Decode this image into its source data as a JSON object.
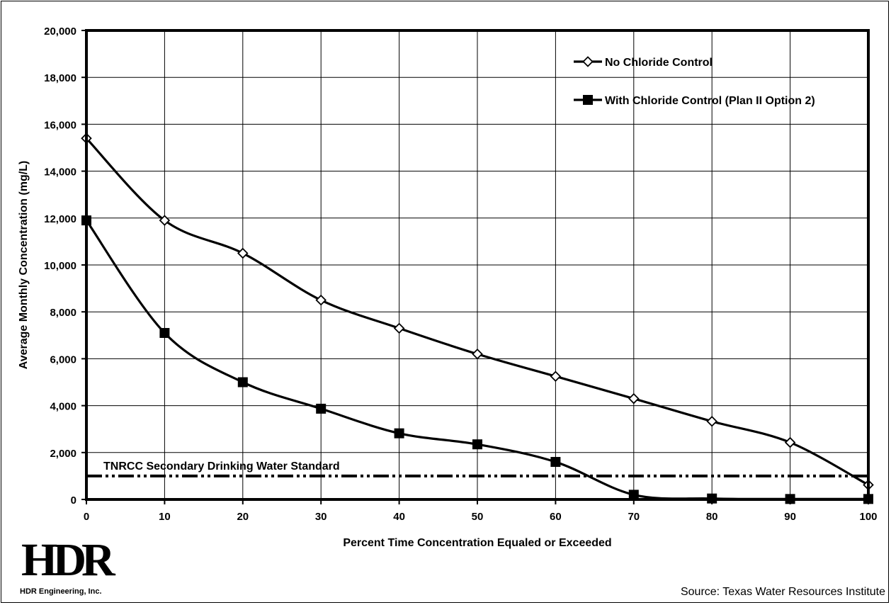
{
  "chart_data": {
    "type": "line",
    "title": "",
    "xlabel": "Percent Time Concentration Equaled or Exceeded",
    "ylabel": "Average Monthly Concentration (mg/L)",
    "xlim": [
      0,
      100
    ],
    "ylim": [
      0,
      20000
    ],
    "x_ticks": [
      0,
      10,
      20,
      30,
      40,
      50,
      60,
      70,
      80,
      90,
      100
    ],
    "x_tick_labels": [
      "0",
      "10",
      "20",
      "30",
      "40",
      "50",
      "60",
      "70",
      "80",
      "90",
      "100"
    ],
    "y_ticks": [
      0,
      2000,
      4000,
      6000,
      8000,
      10000,
      12000,
      14000,
      16000,
      18000,
      20000
    ],
    "y_tick_labels": [
      "0",
      "2,000",
      "4,000",
      "6,000",
      "8,000",
      "10,000",
      "12,000",
      "14,000",
      "16,000",
      "18,000",
      "20,000"
    ],
    "grid": true,
    "legend_position": "top-right",
    "x": [
      0,
      10,
      20,
      30,
      40,
      50,
      60,
      70,
      80,
      90,
      100
    ],
    "series": [
      {
        "name": "No Chloride Control",
        "marker": "open-diamond",
        "color": "#000000",
        "values": [
          15400,
          11900,
          10500,
          8500,
          7300,
          6200,
          5250,
          4300,
          3330,
          2430,
          620
        ]
      },
      {
        "name": "With Chloride Control (Plan II Option 2)",
        "marker": "filled-square",
        "color": "#000000",
        "values": [
          11900,
          7100,
          5000,
          3870,
          2820,
          2350,
          1600,
          200,
          40,
          20,
          20
        ]
      }
    ],
    "reference_line": {
      "label": "TNRCC Secondary Drinking Water Standard",
      "value": 1000,
      "style": "dash-dot-dot"
    }
  },
  "logo": {
    "mark": "HDR",
    "company": "HDR Engineering, Inc."
  },
  "source_note": "Source:  Texas Water Resources Institute"
}
